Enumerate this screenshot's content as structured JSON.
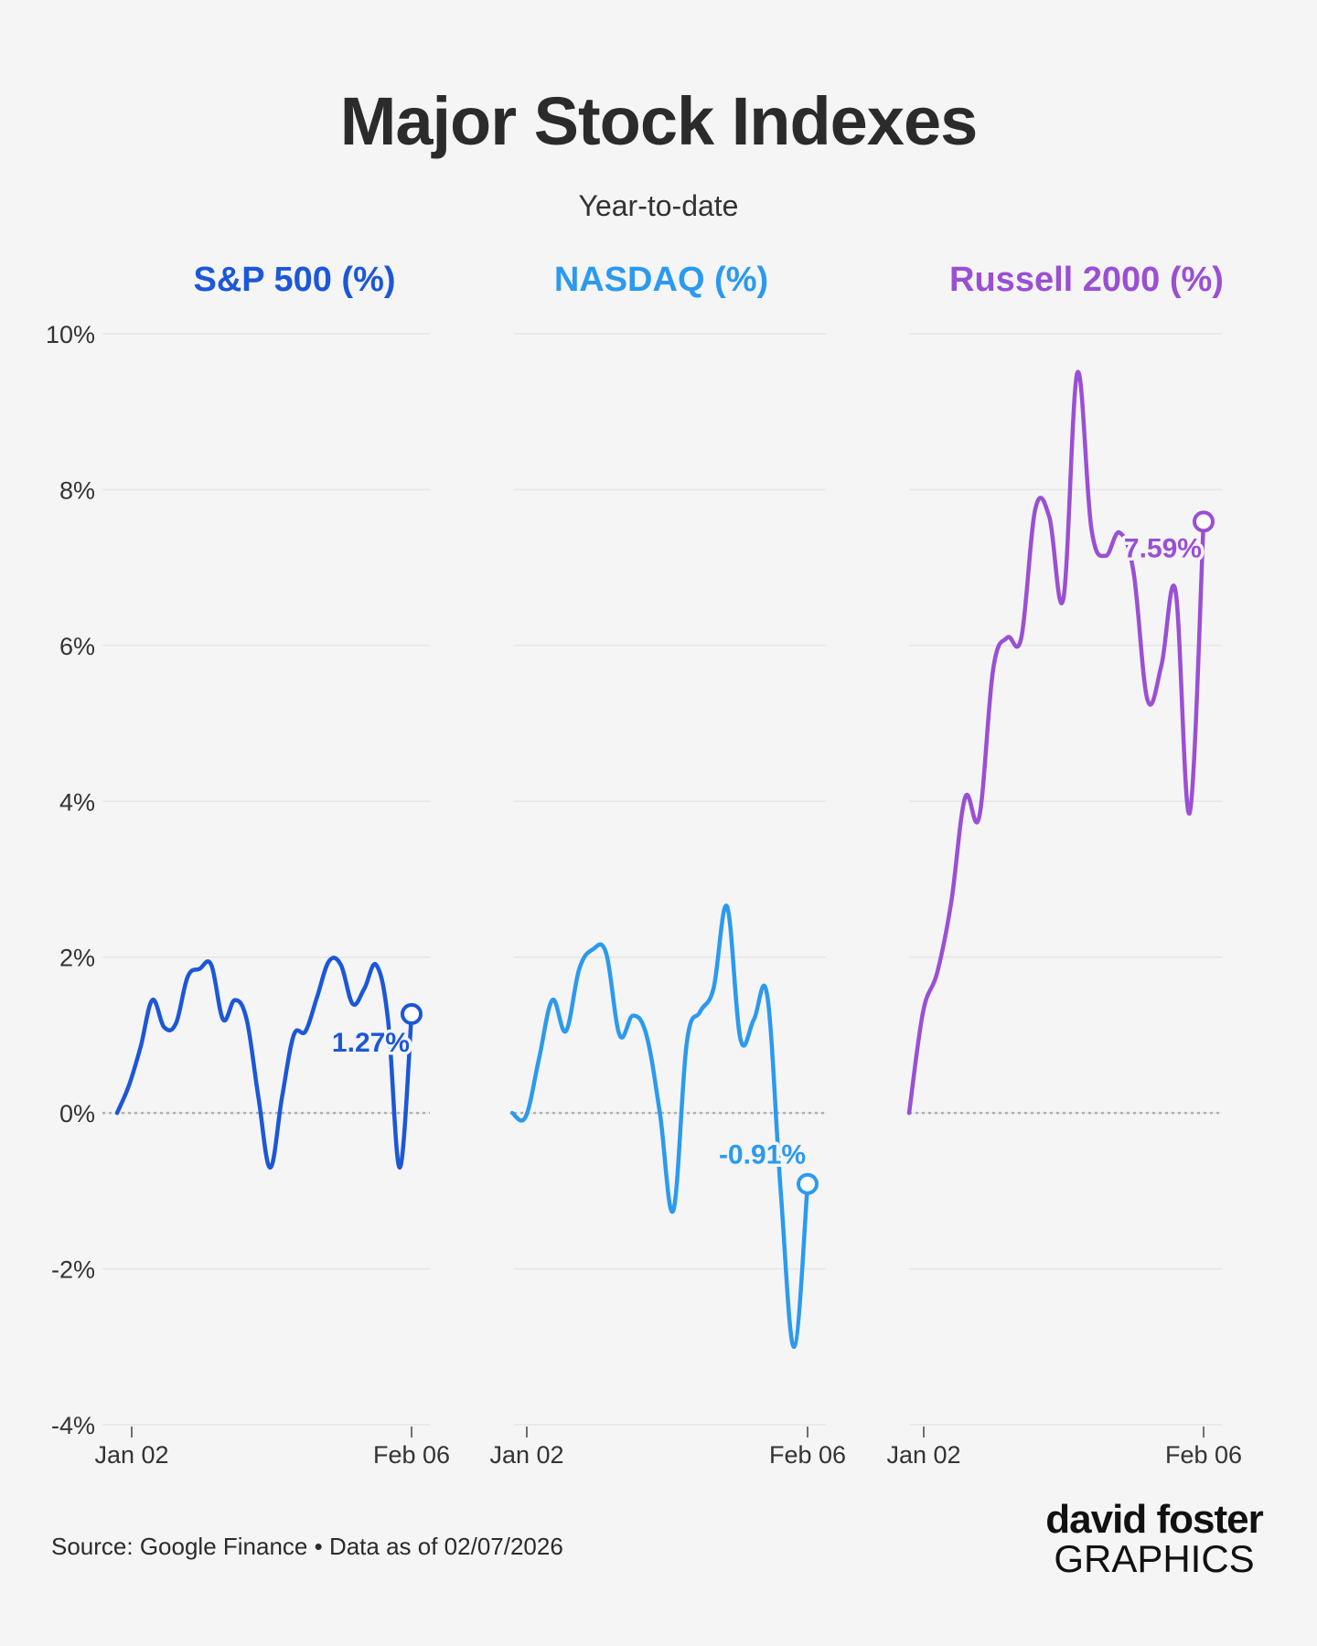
{
  "header": {
    "title": "Major Stock Indexes",
    "subtitle": "Year-to-date"
  },
  "footer": {
    "source": "Source: Google Finance • Data as of 02/07/2026",
    "brand_top": "david foster",
    "brand_bottom": "GRAPHICS"
  },
  "colors": {
    "sp500": "#1c57d8",
    "nasdaq": "#2b9aee",
    "russell": "#9a4fd4",
    "grid": "#e6e6e6",
    "zero_line": "#b0b0b0",
    "background": "#f5f5f5"
  },
  "chart_data": [
    {
      "type": "line",
      "title": "S&P 500 (%)",
      "x_ticks": [
        "Jan 02",
        "Feb 06"
      ],
      "y_ticks": [
        "10%",
        "8%",
        "6%",
        "4%",
        "2%",
        "0%",
        "-2%",
        "-4%"
      ],
      "ylim": [
        -4,
        10
      ],
      "grid": true,
      "end_label": "1.27%",
      "series": [
        {
          "values": [
            0,
            0.35,
            0.85,
            1.45,
            1.1,
            1.15,
            1.75,
            1.85,
            1.9,
            1.2,
            1.45,
            1.2,
            0.2,
            -0.7,
            0.2,
            1.0,
            1.05,
            1.5,
            1.95,
            1.9,
            1.4,
            1.6,
            1.9,
            1.2,
            -0.7,
            1.27
          ]
        }
      ]
    },
    {
      "type": "line",
      "title": "NASDAQ (%)",
      "x_ticks": [
        "Jan 02",
        "Feb 06"
      ],
      "y_ticks": [
        "10%",
        "8%",
        "6%",
        "4%",
        "2%",
        "0%",
        "-2%",
        "-4%"
      ],
      "ylim": [
        -4,
        10
      ],
      "grid": true,
      "end_label": "-0.91%",
      "series": [
        {
          "values": [
            0,
            -0.05,
            0.7,
            1.45,
            1.05,
            1.85,
            2.1,
            2.05,
            1.0,
            1.25,
            1.0,
            0.0,
            -1.25,
            0.9,
            1.3,
            1.6,
            2.65,
            0.95,
            1.2,
            1.5,
            -1.0,
            -3.0,
            -0.91
          ]
        }
      ]
    },
    {
      "type": "line",
      "title": "Russell 2000 (%)",
      "x_ticks": [
        "Jan 02",
        "Feb 06"
      ],
      "y_ticks": [
        "10%",
        "8%",
        "6%",
        "4%",
        "2%",
        "0%",
        "-2%",
        "-4%"
      ],
      "ylim": [
        -4,
        10
      ],
      "grid": true,
      "end_label": "7.59%",
      "series": [
        {
          "values": [
            0,
            1.3,
            1.8,
            2.7,
            4.05,
            3.8,
            5.7,
            6.1,
            6.1,
            7.75,
            7.65,
            6.6,
            9.5,
            7.5,
            7.15,
            7.45,
            6.95,
            5.3,
            5.75,
            6.7,
            3.85,
            7.59
          ]
        }
      ]
    }
  ]
}
